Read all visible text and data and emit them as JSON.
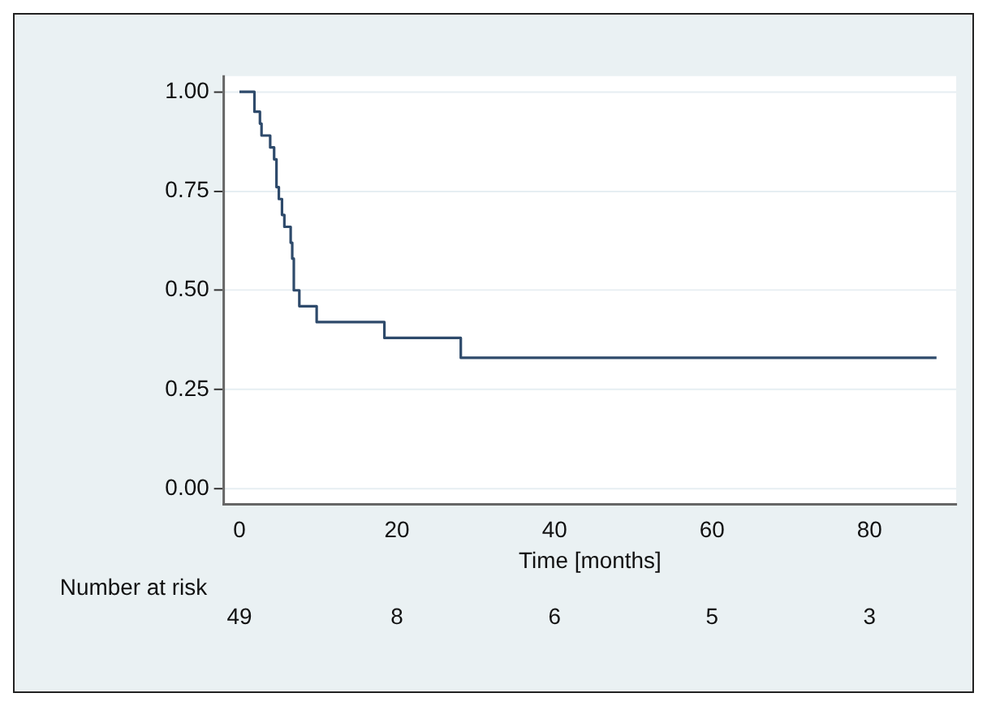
{
  "chart_data": {
    "type": "step",
    "xlabel": "Time [months]",
    "x": [
      0,
      1.9,
      2.6,
      2.8,
      3.9,
      4.4,
      4.7,
      5.0,
      5.4,
      5.7,
      6.5,
      6.7,
      6.9,
      7.6,
      9.8,
      18.4,
      28.1,
      88.5
    ],
    "series": [
      {
        "color": "#2e4a6b",
        "values": [
          1,
          0.95,
          0.92,
          0.89,
          0.86,
          0.83,
          0.76,
          0.73,
          0.69,
          0.66,
          0.62,
          0.58,
          0.5,
          0.46,
          0.42,
          0.38,
          0.33,
          0.33
        ]
      }
    ],
    "xlim": [
      -2,
      91
    ],
    "xticks": [
      0,
      20,
      40,
      60,
      80
    ],
    "ylim": [
      -0.04,
      1.04
    ],
    "yticks": [
      {
        "value": 0,
        "label": "0.00"
      },
      {
        "value": 0.25,
        "label": "0.25"
      },
      {
        "value": 0.5,
        "label": "0.50"
      },
      {
        "value": 0.75,
        "label": "0.75"
      },
      {
        "value": 1,
        "label": "1.00"
      }
    ],
    "grid": "y",
    "legend": false,
    "marker": "none",
    "line_style": "solid",
    "annotations": [
      "Number at risk",
      "49",
      "8",
      "6",
      "5",
      "3"
    ]
  }
}
